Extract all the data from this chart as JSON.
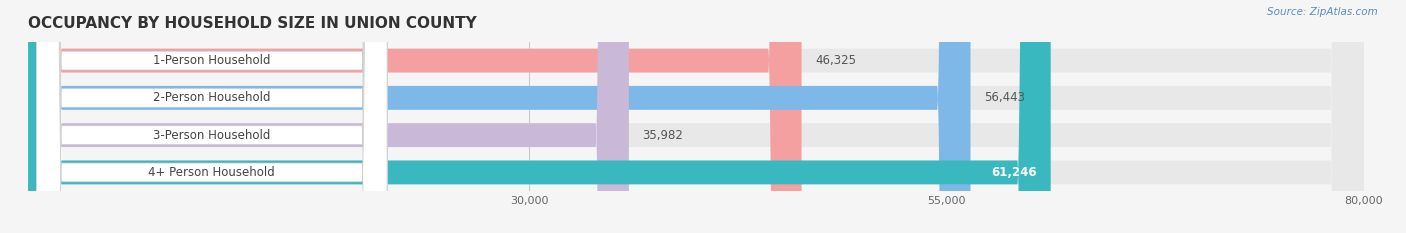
{
  "title": "OCCUPANCY BY HOUSEHOLD SIZE IN UNION COUNTY",
  "source": "Source: ZipAtlas.com",
  "categories": [
    "1-Person Household",
    "2-Person Household",
    "3-Person Household",
    "4+ Person Household"
  ],
  "values": [
    46325,
    56443,
    35982,
    61246
  ],
  "bar_colors": [
    "#f4a0a0",
    "#7db8e8",
    "#c9b8d8",
    "#3ab8c0"
  ],
  "background_color": "#f0f0f0",
  "bar_background_color": "#e8e8e8",
  "xlim": [
    0,
    80000
  ],
  "xticks": [
    30000,
    55000,
    80000
  ],
  "xticklabels": [
    "30,000",
    "55,000",
    "80,000"
  ],
  "value_labels": [
    "46,325",
    "56,443",
    "35,982",
    "61,246"
  ],
  "label_inside": [
    false,
    false,
    false,
    true
  ]
}
